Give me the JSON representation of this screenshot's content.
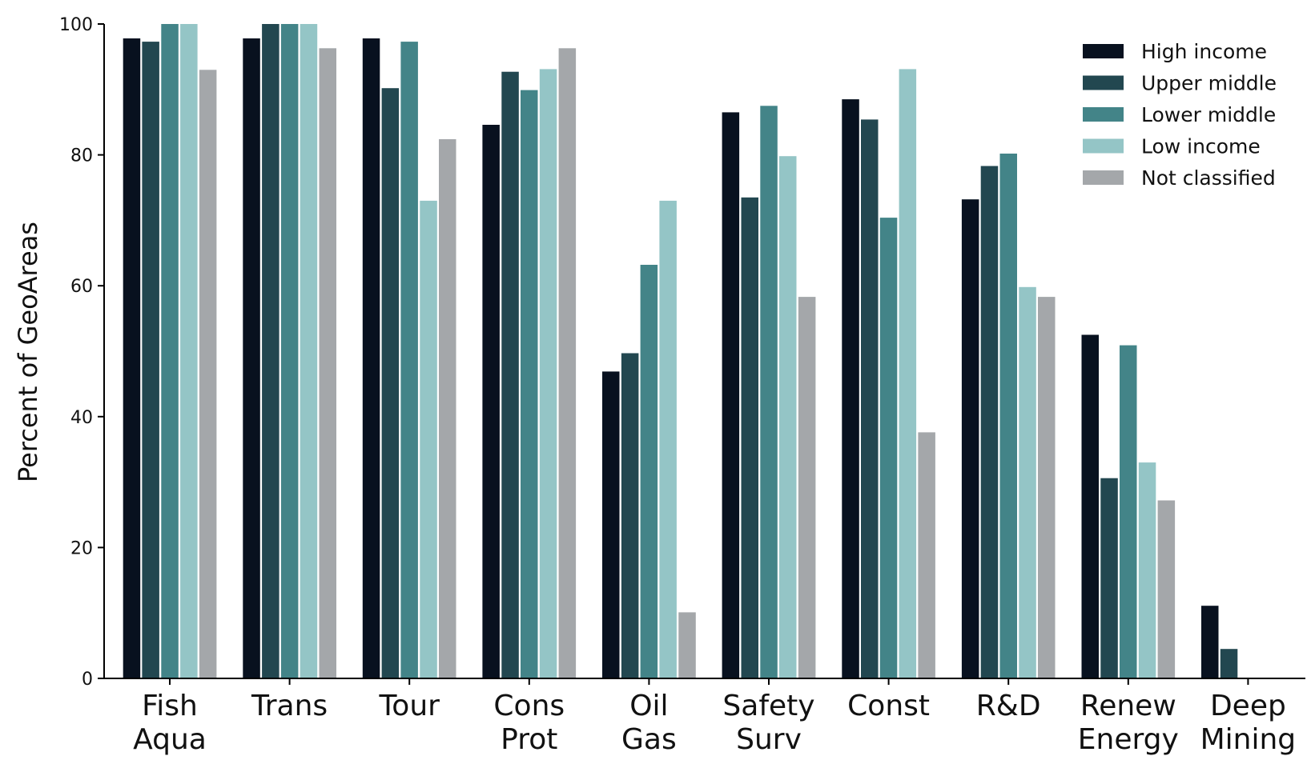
{
  "chart_data": {
    "type": "bar",
    "title": "",
    "xlabel": "",
    "ylabel": "Percent of GeoAreas",
    "ylim": [
      0,
      100
    ],
    "yticks": [
      "0",
      "20",
      "40",
      "60",
      "80",
      "100"
    ],
    "grid": false,
    "legend_position": "top-right",
    "categories": [
      [
        "Fish",
        "Aqua"
      ],
      [
        "Trans"
      ],
      [
        "Tour"
      ],
      [
        "Cons",
        "Prot"
      ],
      [
        "Oil",
        "Gas"
      ],
      [
        "Safety",
        "Surv"
      ],
      [
        "Const"
      ],
      [
        "R&D"
      ],
      [
        "Renew",
        "Energy"
      ],
      [
        "Deep",
        "Mining"
      ]
    ],
    "series": [
      {
        "name": "High income",
        "color": "#08111f",
        "values": [
          97.8,
          97.8,
          97.8,
          84.6,
          46.9,
          86.5,
          88.5,
          73.2,
          52.5,
          11.1
        ]
      },
      {
        "name": "Upper middle",
        "color": "#224750",
        "values": [
          97.3,
          100,
          90.2,
          92.7,
          49.7,
          73.5,
          85.4,
          78.3,
          30.6,
          4.5
        ]
      },
      {
        "name": "Lower middle",
        "color": "#438488",
        "values": [
          100,
          100,
          97.3,
          89.9,
          63.2,
          87.5,
          70.4,
          80.2,
          50.9,
          0
        ]
      },
      {
        "name": "Low income",
        "color": "#94c5c6",
        "values": [
          100,
          100,
          73.0,
          93.1,
          73.0,
          79.8,
          93.1,
          59.8,
          33.0,
          0
        ]
      },
      {
        "name": "Not classified",
        "color": "#a4a7aa",
        "values": [
          93.0,
          96.3,
          82.4,
          96.3,
          10.1,
          58.3,
          37.6,
          58.3,
          27.2,
          0
        ]
      }
    ]
  }
}
